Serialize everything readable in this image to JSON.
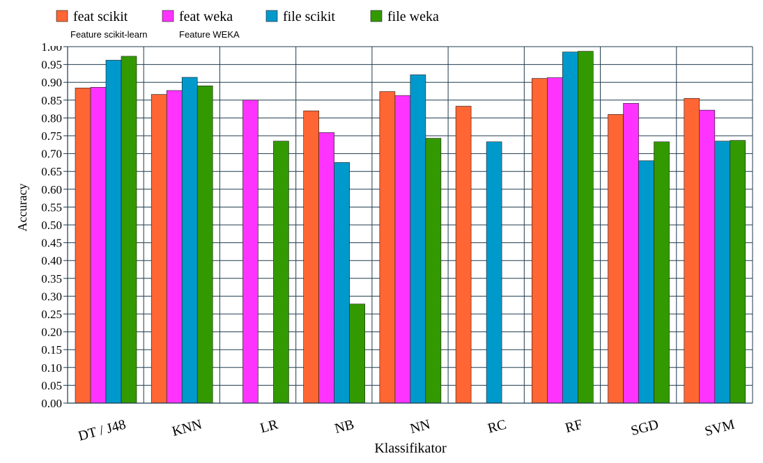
{
  "chart_data": {
    "type": "bar",
    "categories": [
      "DT / J48",
      "KNN",
      "LR",
      "NB",
      "NN",
      "RC",
      "RF",
      "SGD",
      "SVM"
    ],
    "series": [
      {
        "name": "feat scikit",
        "color": "#ff6633",
        "values": [
          0.884,
          0.866,
          null,
          0.82,
          0.874,
          0.833,
          0.911,
          0.81,
          0.855
        ]
      },
      {
        "name": "feat weka",
        "color": "#ff33ff",
        "values": [
          0.886,
          0.877,
          0.85,
          0.759,
          0.863,
          null,
          0.913,
          0.841,
          0.822
        ]
      },
      {
        "name": "file scikit",
        "color": "#0099cc",
        "values": [
          0.962,
          0.914,
          null,
          0.675,
          0.921,
          0.733,
          0.985,
          0.68,
          0.735
        ]
      },
      {
        "name": "file weka",
        "color": "#339900",
        "values": [
          0.973,
          0.89,
          0.735,
          0.278,
          0.743,
          null,
          0.987,
          0.733,
          0.737
        ]
      }
    ],
    "legend_notes": [
      "Feature scikit-learn",
      "Feature WEKA"
    ],
    "xlabel": "Klassifikator",
    "ylabel": "Accuracy",
    "ylim": [
      0,
      1
    ],
    "ytick_step": 0.05,
    "grid": true,
    "legend_position": "top-left"
  }
}
